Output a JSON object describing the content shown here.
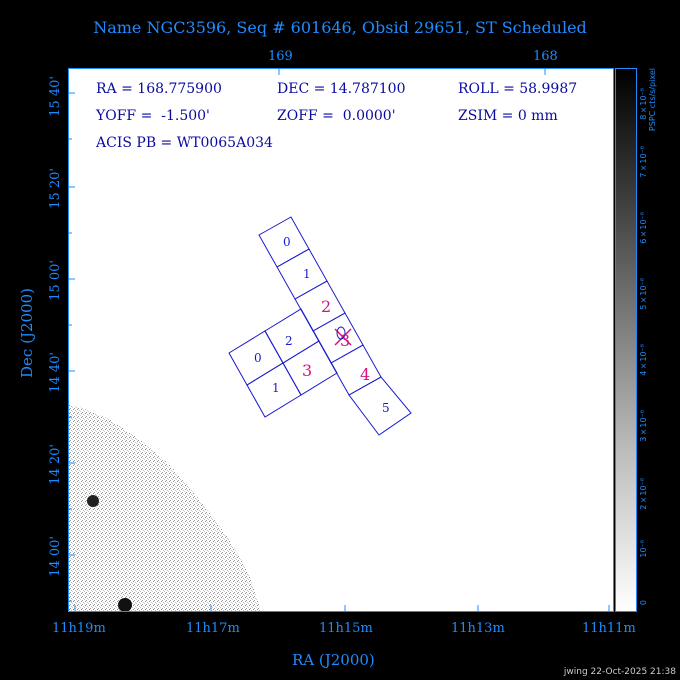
{
  "title": "Name NGC3596, Seq # 601646, Obsid 29651, ST Scheduled",
  "info": {
    "ra": "RA = 168.775900",
    "dec": "DEC = 14.787100",
    "roll": "ROLL = 58.9987",
    "yoff": "YOFF =  -1.500'",
    "zoff": "ZOFF =  0.0000'",
    "zsim": "ZSIM = 0 mm",
    "acis": "ACIS PB = WT0065A034"
  },
  "axes": {
    "x_label": "RA (J2000)",
    "y_label": "Dec (J2000)",
    "x_ticks": [
      "11h19m",
      "11h17m",
      "11h15m",
      "11h13m",
      "11h11m"
    ],
    "y_ticks": [
      "15 40'",
      "15 20'",
      "15 00'",
      "14 40'",
      "14 20'",
      "14 00'"
    ],
    "top_ticks": [
      "169",
      "168"
    ]
  },
  "colorbar": {
    "title": "PSPC cts/s/pixel",
    "labels": [
      "0",
      "10⁻⁸",
      "2×10⁻⁸",
      "3×10⁻⁸",
      "4×10⁻⁸",
      "5×10⁻⁸",
      "6×10⁻⁸",
      "7×10⁻⁸",
      "8×10⁻⁸"
    ]
  },
  "chips": {
    "i_array": [
      "0",
      "1",
      "2",
      "3"
    ],
    "s_array": [
      "0",
      "1",
      "2",
      "3",
      "4",
      "5"
    ]
  },
  "footer": "jwing 22-Oct-2025 21:38",
  "colors": {
    "accent": "#1e8cff",
    "chip_outline": "#1a1acc",
    "chip_active": "#d4147a"
  }
}
